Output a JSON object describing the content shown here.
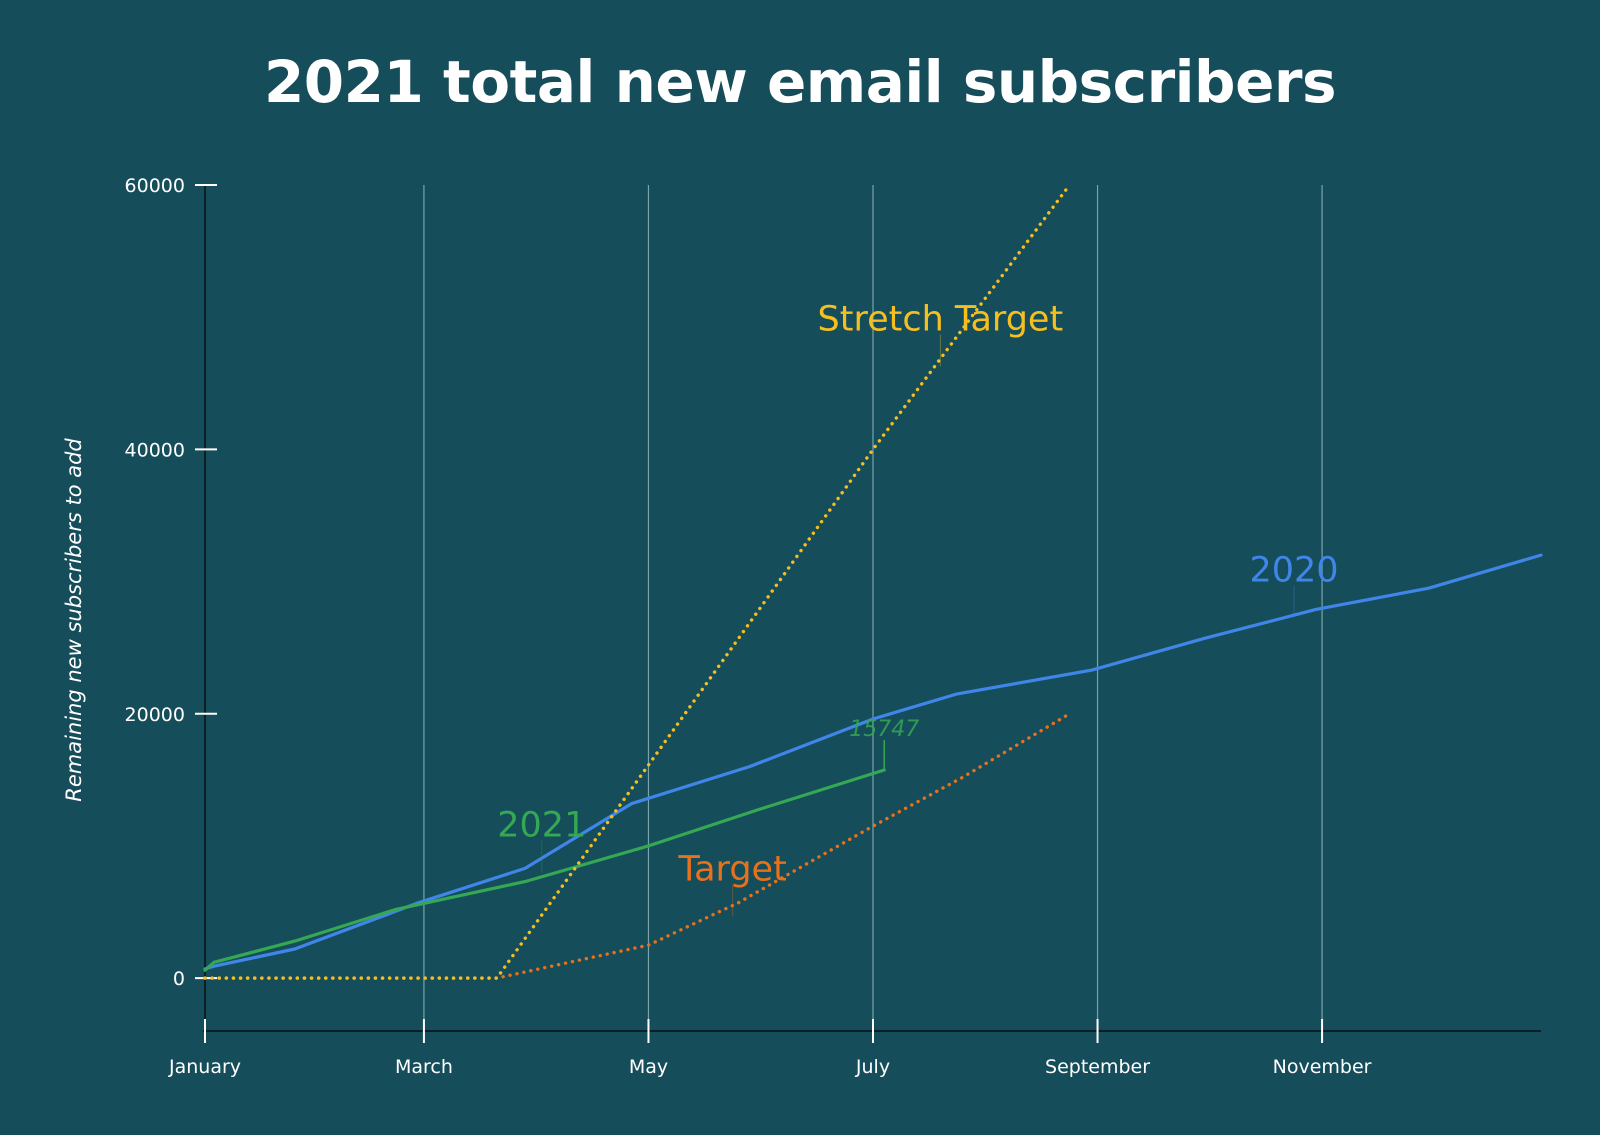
{
  "chart_data": {
    "type": "line",
    "title": "2021 total new email subscribers",
    "xlabel": "",
    "ylabel": "Remaining new subscribers to add",
    "xlim": [
      0,
      11.9
    ],
    "ylim": [
      -4000,
      60000
    ],
    "x_ticks": [
      {
        "value": 0,
        "label": "January"
      },
      {
        "value": 1.95,
        "label": "March"
      },
      {
        "value": 3.95,
        "label": "May"
      },
      {
        "value": 5.95,
        "label": "July"
      },
      {
        "value": 7.95,
        "label": "September"
      },
      {
        "value": 9.95,
        "label": "November"
      }
    ],
    "y_ticks": [
      {
        "value": 0,
        "label": "0"
      },
      {
        "value": 20000,
        "label": "20000"
      },
      {
        "value": 40000,
        "label": "40000"
      },
      {
        "value": 60000,
        "label": "60000"
      }
    ],
    "grid": "vertical",
    "series": [
      {
        "name": "2020",
        "color": "#4086e8",
        "style": "solid",
        "label_position": [
          9.7,
          30000
        ],
        "x": [
          0,
          0.08,
          0.8,
          1.9,
          2.85,
          3.8,
          4.85,
          5.95,
          6.7,
          7.9,
          8.9,
          9.9,
          10.9,
          11.9
        ],
        "y": [
          700,
          900,
          2200,
          5700,
          8300,
          13200,
          16000,
          19600,
          21500,
          23300,
          25700,
          27900,
          29500,
          32000
        ]
      },
      {
        "name": "2021",
        "color": "#34a853",
        "style": "solid",
        "label_position": [
          3.0,
          10700
        ],
        "x": [
          0,
          0.08,
          0.8,
          1.7,
          2.85,
          3.95,
          4.95,
          6.05
        ],
        "y": [
          600,
          1200,
          2800,
          5200,
          7300,
          10000,
          12800,
          15747
        ]
      },
      {
        "name": "Target",
        "color": "#e8711c",
        "style": "dotted",
        "label_position": [
          4.7,
          7400
        ],
        "x": [
          0,
          2.6,
          3.95,
          4.75,
          5.95,
          6.75,
          7.7
        ],
        "y": [
          0,
          0,
          2500,
          5700,
          11500,
          15200,
          20000
        ]
      },
      {
        "name": "Stretch Target",
        "color": "#f5bf1f",
        "style": "dotted",
        "label_position": [
          6.55,
          49000
        ],
        "x": [
          0,
          2.6,
          5.95,
          7.7
        ],
        "y": [
          0,
          0,
          40000,
          60000
        ]
      }
    ],
    "annotations": [
      {
        "text": "15747",
        "x": 6.05,
        "y": 15747,
        "color": "#34a853"
      }
    ]
  }
}
